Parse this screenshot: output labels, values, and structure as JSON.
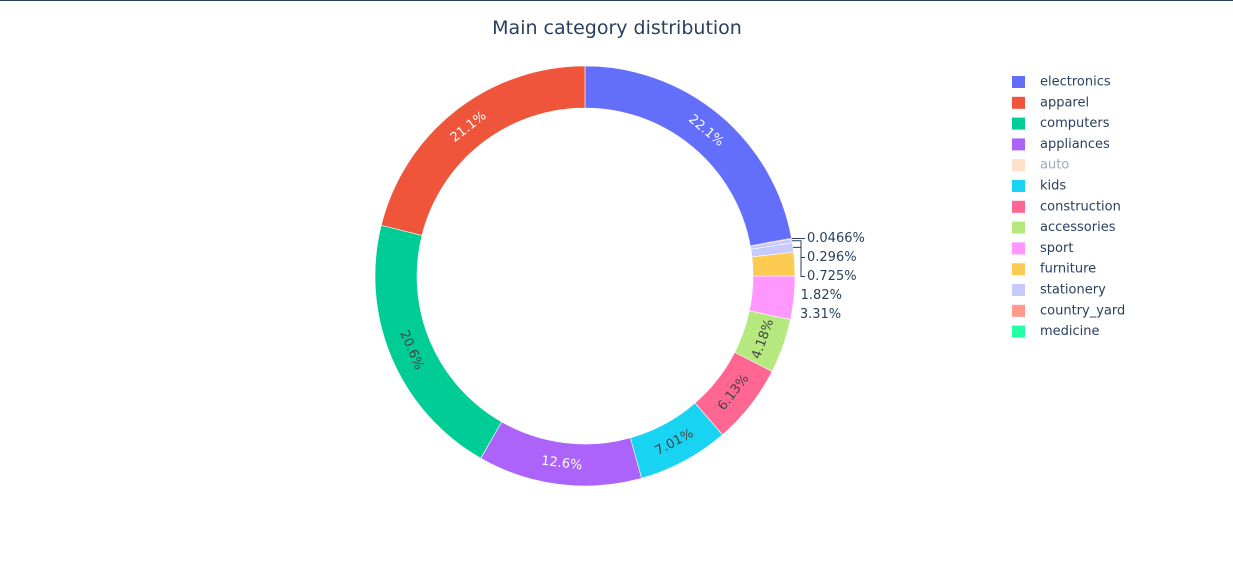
{
  "chart_data": {
    "type": "pie",
    "hole": true,
    "title": "Main category distribution",
    "legend_position": "right",
    "slices": [
      {
        "label": "electronics",
        "value": 22.1,
        "text": "22.1%",
        "color": "#636efa",
        "visible": true
      },
      {
        "label": "country_yard",
        "value": 0.0466,
        "text": "0.0466%",
        "color": "#ff9a8a",
        "visible": true
      },
      {
        "label": "medicine",
        "value": 0.005,
        "text": "",
        "color": "#22ffa7",
        "visible": true
      },
      {
        "label": "stationery",
        "value": 0.296,
        "text": "0.296%",
        "color": "#c6cafd",
        "visible": true
      },
      {
        "label": "stationery",
        "value": 0.725,
        "text": "0.725%",
        "color": "#c6cafd",
        "visible": true
      },
      {
        "label": "furniture",
        "value": 1.82,
        "text": "1.82%",
        "color": "#fecb52",
        "visible": true
      },
      {
        "label": "sport",
        "value": 3.31,
        "text": "3.31%",
        "color": "#ff97ff",
        "visible": true
      },
      {
        "label": "accessories",
        "value": 4.18,
        "text": "4.18%",
        "color": "#b6e880",
        "visible": true
      },
      {
        "label": "construction",
        "value": 6.13,
        "text": "6.13%",
        "color": "#ff6692",
        "visible": true
      },
      {
        "label": "kids",
        "value": 7.01,
        "text": "7.01%",
        "color": "#19d3f3",
        "visible": true
      },
      {
        "label": "appliances",
        "value": 12.6,
        "text": "12.6%",
        "color": "#ab63fa",
        "visible": true
      },
      {
        "label": "computers",
        "value": 20.6,
        "text": "20.6%",
        "color": "#00cc96",
        "visible": true
      },
      {
        "label": "apparel",
        "value": 21.1,
        "text": "21.1%",
        "color": "#ef553b",
        "visible": true
      }
    ],
    "legend": [
      {
        "label": "electronics",
        "color": "#636efa",
        "visible": true
      },
      {
        "label": "apparel",
        "color": "#ef553b",
        "visible": true
      },
      {
        "label": "computers",
        "color": "#00cc96",
        "visible": true
      },
      {
        "label": "appliances",
        "color": "#ab63fa",
        "visible": true
      },
      {
        "label": "auto",
        "color": "#ffcba4",
        "visible": false
      },
      {
        "label": "kids",
        "color": "#19d3f3",
        "visible": true
      },
      {
        "label": "construction",
        "color": "#ff6692",
        "visible": true
      },
      {
        "label": "accessories",
        "color": "#b6e880",
        "visible": true
      },
      {
        "label": "sport",
        "color": "#ff97ff",
        "visible": true
      },
      {
        "label": "furniture",
        "color": "#fecb52",
        "visible": true
      },
      {
        "label": "stationery",
        "color": "#c6cafd",
        "visible": true
      },
      {
        "label": "country_yard",
        "color": "#ff9a8a",
        "visible": true
      },
      {
        "label": "medicine",
        "color": "#22ffa7",
        "visible": true
      }
    ]
  }
}
